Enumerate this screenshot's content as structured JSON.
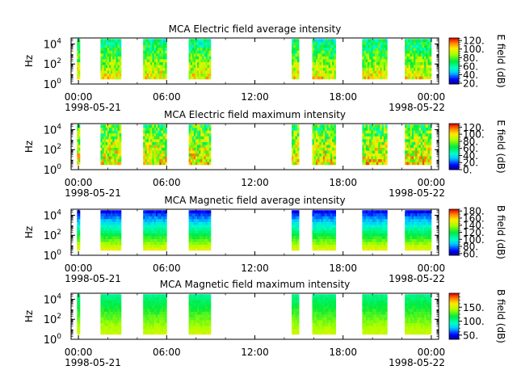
{
  "chart_data": [
    {
      "type": "heatmap",
      "title": "MCA  Electric field average intensity",
      "ylabel": "Hz",
      "x_ticks": [
        "00:00",
        "06:00",
        "12:00",
        "18:00",
        "00:00"
      ],
      "x_tick_hours": [
        0,
        6,
        12,
        18,
        24
      ],
      "x_dates": [
        "1998-05-21",
        "1998-05-22"
      ],
      "xlim_hours": [
        -0.5,
        24.5
      ],
      "y_ticks": [
        "10",
        "10",
        "10"
      ],
      "y_tick_exponents": [
        "0",
        "2",
        "4"
      ],
      "ylim_log10": [
        0,
        4.6
      ],
      "colorbar_label": "E field (dB)",
      "colorbar_range": [
        18,
        126
      ],
      "colorbar_ticks": [
        "20.",
        "40.",
        "60.",
        "80.",
        "100.",
        "120."
      ],
      "colorbar_tick_values": [
        20,
        40,
        60,
        80,
        100,
        120
      ],
      "data_intervals_hours": [
        [
          -0.1,
          0.1
        ],
        [
          1.5,
          2.9
        ],
        [
          4.4,
          6.0
        ],
        [
          7.5,
          9.0
        ],
        [
          14.5,
          15.0
        ],
        [
          15.9,
          17.5
        ],
        [
          19.3,
          21.0
        ],
        [
          22.2,
          24.0
        ]
      ],
      "level_bottom_db": 100,
      "level_top_db": 62,
      "vertical_variability": 0.6
    },
    {
      "type": "heatmap",
      "title": "MCA  Electric field maximum intensity",
      "ylabel": "Hz",
      "x_ticks": [
        "00:00",
        "06:00",
        "12:00",
        "18:00",
        "00:00"
      ],
      "x_tick_hours": [
        0,
        6,
        12,
        18,
        24
      ],
      "x_dates": [
        "1998-05-21",
        "1998-05-22"
      ],
      "xlim_hours": [
        -0.5,
        24.5
      ],
      "y_ticks": [
        "10",
        "10",
        "10"
      ],
      "y_tick_exponents": [
        "0",
        "2",
        "4"
      ],
      "ylim_log10": [
        0,
        4.6
      ],
      "colorbar_label": "E field (dB)",
      "colorbar_range": [
        0,
        130
      ],
      "colorbar_ticks": [
        "0.",
        "20.",
        "40.",
        "60.",
        "80.",
        "100.",
        "120."
      ],
      "colorbar_tick_values": [
        0,
        20,
        40,
        60,
        80,
        100,
        120
      ],
      "data_intervals_hours": [
        [
          -0.1,
          0.1
        ],
        [
          1.5,
          2.9
        ],
        [
          4.4,
          6.0
        ],
        [
          7.5,
          9.0
        ],
        [
          14.5,
          15.0
        ],
        [
          15.9,
          17.5
        ],
        [
          19.3,
          21.0
        ],
        [
          22.2,
          24.0
        ]
      ],
      "level_bottom_db": 98,
      "level_top_db": 70,
      "vertical_variability": 0.8
    },
    {
      "type": "heatmap",
      "title": "MCA  Magnetic field average intensity",
      "ylabel": "Hz",
      "x_ticks": [
        "00:00",
        "06:00",
        "12:00",
        "18:00",
        "00:00"
      ],
      "x_tick_hours": [
        0,
        6,
        12,
        18,
        24
      ],
      "x_dates": [
        "1998-05-21",
        "1998-05-22"
      ],
      "xlim_hours": [
        -0.5,
        24.5
      ],
      "y_ticks": [
        "10",
        "10",
        "10"
      ],
      "y_tick_exponents": [
        "0",
        "2",
        "4"
      ],
      "ylim_log10": [
        0,
        4.6
      ],
      "colorbar_label": "B field (dB)",
      "colorbar_range": [
        55,
        185
      ],
      "colorbar_ticks": [
        "60.",
        "80.",
        "100.",
        "120.",
        "140.",
        "160.",
        "180."
      ],
      "colorbar_tick_values": [
        60,
        80,
        100,
        120,
        140,
        160,
        180
      ],
      "data_intervals_hours": [
        [
          -0.1,
          0.1
        ],
        [
          1.5,
          2.9
        ],
        [
          4.4,
          6.0
        ],
        [
          7.5,
          9.0
        ],
        [
          14.5,
          15.0
        ],
        [
          15.9,
          17.5
        ],
        [
          19.3,
          21.0
        ],
        [
          22.2,
          24.0
        ]
      ],
      "level_bottom_db": 150,
      "level_top_db": 68,
      "vertical_variability": 0.15
    },
    {
      "type": "heatmap",
      "title": "MCA  Magnetic field maximum intensity",
      "ylabel": "Hz",
      "x_ticks": [
        "00:00",
        "06:00",
        "12:00",
        "18:00",
        "00:00"
      ],
      "x_tick_hours": [
        0,
        6,
        12,
        18,
        24
      ],
      "x_dates": [
        "1998-05-21",
        "1998-05-22"
      ],
      "xlim_hours": [
        -0.5,
        24.5
      ],
      "y_ticks": [
        "10",
        "10",
        "10"
      ],
      "y_tick_exponents": [
        "0",
        "2",
        "4"
      ],
      "ylim_log10": [
        0,
        4.6
      ],
      "colorbar_label": "B field (dB)",
      "colorbar_range": [
        35,
        200
      ],
      "colorbar_ticks": [
        "50.",
        "100.",
        "150."
      ],
      "colorbar_tick_values": [
        50,
        100,
        150
      ],
      "data_intervals_hours": [
        [
          -0.1,
          0.1
        ],
        [
          1.5,
          2.9
        ],
        [
          4.4,
          6.0
        ],
        [
          7.5,
          9.0
        ],
        [
          14.5,
          15.0
        ],
        [
          15.9,
          17.5
        ],
        [
          19.3,
          21.0
        ],
        [
          22.2,
          24.0
        ]
      ],
      "level_bottom_db": 150,
      "level_top_db": 105,
      "vertical_variability": 0.12
    }
  ]
}
